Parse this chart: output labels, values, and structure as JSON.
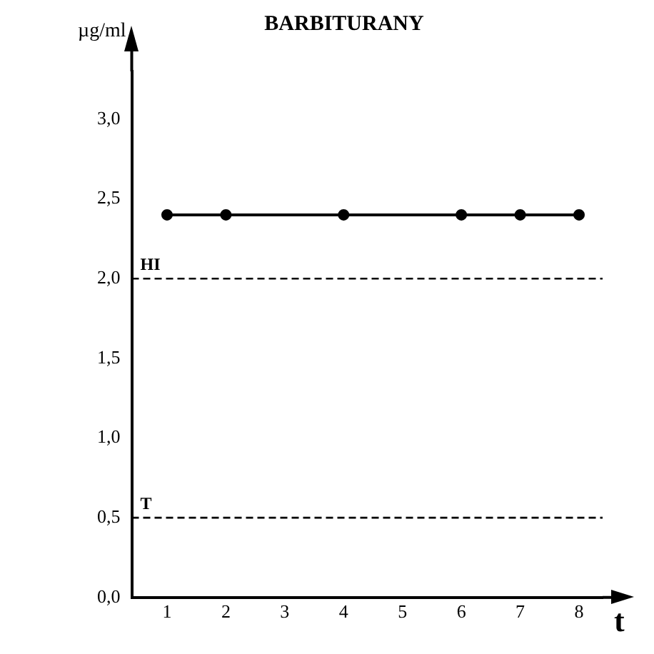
{
  "chart_data": {
    "type": "line",
    "title": "BARBITURANY",
    "xlabel": "t",
    "ylabel": "µg/ml",
    "x": [
      1,
      2,
      4,
      6,
      7,
      8
    ],
    "series": [
      {
        "color": "#000000",
        "values": [
          2.4,
          2.4,
          2.4,
          2.4,
          2.4,
          2.4
        ]
      }
    ],
    "xlim": [
      0.4,
      8.4
    ],
    "xticks": [
      1,
      2,
      3,
      4,
      5,
      6,
      7,
      8
    ],
    "ylim": [
      0,
      3.3
    ],
    "yticks": [
      {
        "value": 0,
        "label": "0,0"
      },
      {
        "value": 0.5,
        "label": "0,5"
      },
      {
        "value": 1,
        "label": "1,0"
      },
      {
        "value": 1.5,
        "label": "1,5"
      },
      {
        "value": 2,
        "label": "2,0"
      },
      {
        "value": 2.5,
        "label": "2,5"
      },
      {
        "value": 3,
        "label": "3,0"
      }
    ],
    "ref_lines": [
      {
        "axis": "y",
        "value": 2,
        "label": "HI",
        "line_style": "dashed"
      },
      {
        "axis": "y",
        "value": 0.5,
        "label": "T",
        "line_style": "dashed"
      }
    ],
    "grid": false,
    "legend": false,
    "marker": "circle",
    "line_style": "solid"
  }
}
